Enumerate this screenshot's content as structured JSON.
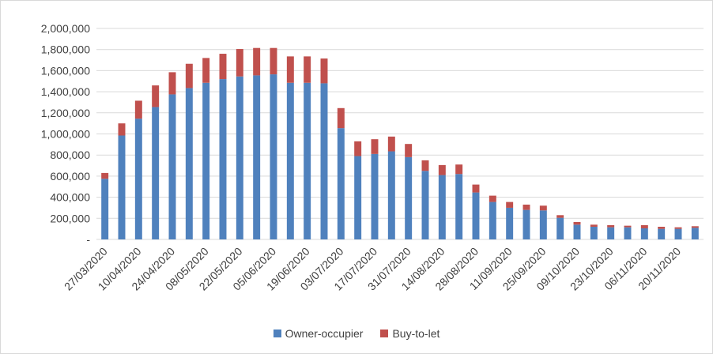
{
  "colors": {
    "owner_occupier": "#4f81bd",
    "buy_to_let": "#c0504d",
    "grid": "#d9d9d9",
    "axis_text": "#404040"
  },
  "chart_data": {
    "type": "bar",
    "stacked": true,
    "title": "",
    "xlabel": "",
    "ylabel": "",
    "ylim": [
      0,
      2000000
    ],
    "yticks": [
      0,
      200000,
      400000,
      600000,
      800000,
      1000000,
      1200000,
      1400000,
      1600000,
      1800000,
      2000000
    ],
    "ytick_labels": [
      "-",
      "200,000",
      "400,000",
      "600,000",
      "800,000",
      "1,000,000",
      "1,200,000",
      "1,400,000",
      "1,600,000",
      "1,800,000",
      "2,000,000"
    ],
    "grid": true,
    "legend_position": "bottom",
    "categories": [
      "27/03/2020",
      "03/04/2020",
      "10/04/2020",
      "17/04/2020",
      "24/04/2020",
      "01/05/2020",
      "08/05/2020",
      "15/05/2020",
      "22/05/2020",
      "29/05/2020",
      "05/06/2020",
      "12/06/2020",
      "19/06/2020",
      "26/06/2020",
      "03/07/2020",
      "10/07/2020",
      "17/07/2020",
      "24/07/2020",
      "31/07/2020",
      "07/08/2020",
      "14/08/2020",
      "21/08/2020",
      "28/08/2020",
      "04/09/2020",
      "11/09/2020",
      "18/09/2020",
      "25/09/2020",
      "02/10/2020",
      "09/10/2020",
      "16/10/2020",
      "23/10/2020",
      "30/10/2020",
      "06/11/2020",
      "13/11/2020",
      "20/11/2020",
      "27/11/2020"
    ],
    "x_tick_labels": [
      "27/03/2020",
      "10/04/2020",
      "24/04/2020",
      "08/05/2020",
      "22/05/2020",
      "05/06/2020",
      "19/06/2020",
      "03/07/2020",
      "17/07/2020",
      "31/07/2020",
      "14/08/2020",
      "28/08/2020",
      "11/09/2020",
      "25/09/2020",
      "09/10/2020",
      "23/10/2020",
      "06/11/2020",
      "20/11/2020"
    ],
    "series": [
      {
        "name": "Owner-occupier",
        "values": [
          575000,
          985000,
          1145000,
          1255000,
          1375000,
          1435000,
          1485000,
          1520000,
          1545000,
          1555000,
          1565000,
          1485000,
          1485000,
          1480000,
          1055000,
          790000,
          810000,
          835000,
          780000,
          650000,
          610000,
          620000,
          445000,
          355000,
          300000,
          280000,
          275000,
          205000,
          140000,
          120000,
          115000,
          115000,
          105000,
          100000,
          100000,
          110000
        ]
      },
      {
        "name": "Buy-to-let",
        "values": [
          55000,
          115000,
          170000,
          205000,
          210000,
          230000,
          235000,
          240000,
          260000,
          260000,
          250000,
          250000,
          250000,
          235000,
          190000,
          140000,
          140000,
          140000,
          125000,
          100000,
          95000,
          90000,
          75000,
          60000,
          55000,
          50000,
          45000,
          25000,
          25000,
          20000,
          20000,
          15000,
          30000,
          20000,
          15000,
          15000
        ]
      }
    ]
  }
}
